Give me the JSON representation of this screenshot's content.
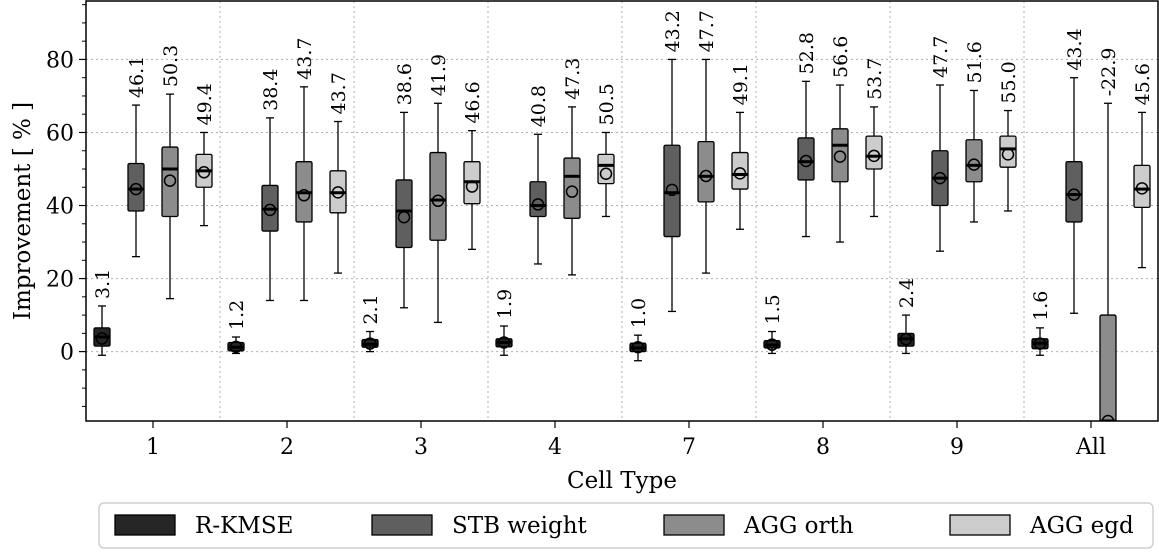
{
  "chart_data": {
    "type": "box",
    "xlabel": "Cell Type",
    "ylabel": "Improvement [ % ]",
    "categories": [
      "1",
      "2",
      "3",
      "4",
      "7",
      "8",
      "9",
      "All"
    ],
    "ylim": [
      -19,
      96
    ],
    "yticks": [
      0,
      20,
      40,
      60,
      80
    ],
    "ytick_labels": [
      "0",
      "20",
      "40",
      "60",
      "80"
    ],
    "grid": true,
    "legend_position": "bottom",
    "series": [
      {
        "name": "R-KMSE",
        "color": "#262626",
        "boxes": [
          {
            "category": "1",
            "whisker_low": -1,
            "q1": 1.5,
            "median": 4,
            "q3": 6.5,
            "whisker_high": 12.5,
            "mean": 3.6,
            "label": "3.1"
          },
          {
            "category": "2",
            "whisker_low": -0.5,
            "q1": 0.2,
            "median": 1.2,
            "q3": 2.5,
            "whisker_high": 4,
            "mean": 1.3,
            "label": "1.2"
          },
          {
            "category": "3",
            "whisker_low": 0,
            "q1": 1.2,
            "median": 2,
            "q3": 3.3,
            "whisker_high": 5.5,
            "mean": 2.2,
            "label": "2.1"
          },
          {
            "category": "4",
            "whisker_low": -1,
            "q1": 1.3,
            "median": 2.5,
            "q3": 3.5,
            "whisker_high": 7,
            "mean": 2.5,
            "label": "1.9"
          },
          {
            "category": "7",
            "whisker_low": -2.5,
            "q1": 0,
            "median": 1,
            "q3": 2.3,
            "whisker_high": 4.5,
            "mean": 1.2,
            "label": "1.0"
          },
          {
            "category": "8",
            "whisker_low": -0.5,
            "q1": 1,
            "median": 1.8,
            "q3": 3,
            "whisker_high": 5.5,
            "mean": 1.9,
            "label": "1.5"
          },
          {
            "category": "9",
            "whisker_low": -0.5,
            "q1": 1.5,
            "median": 3.5,
            "q3": 5,
            "whisker_high": 10,
            "mean": 3.4,
            "label": "2.4"
          },
          {
            "category": "All",
            "whisker_low": -1,
            "q1": 0.8,
            "median": 2.3,
            "q3": 3.5,
            "whisker_high": 6.5,
            "mean": 2.2,
            "label": "1.6"
          }
        ]
      },
      {
        "name": "STB weight",
        "color": "#5f5f5f",
        "boxes": [
          {
            "category": "1",
            "whisker_low": 26,
            "q1": 38.5,
            "median": 44.5,
            "q3": 51.5,
            "whisker_high": 67.5,
            "mean": 44.5,
            "label": "46.1"
          },
          {
            "category": "2",
            "whisker_low": 14,
            "q1": 33,
            "median": 39,
            "q3": 45.5,
            "whisker_high": 64,
            "mean": 38.8,
            "label": "38.4"
          },
          {
            "category": "3",
            "whisker_low": 12,
            "q1": 28.5,
            "median": 38.5,
            "q3": 47,
            "whisker_high": 65.5,
            "mean": 36.8,
            "label": "38.6"
          },
          {
            "category": "4",
            "whisker_low": 24,
            "q1": 37,
            "median": 40,
            "q3": 46.5,
            "whisker_high": 59.5,
            "mean": 40.3,
            "label": "40.8"
          },
          {
            "category": "7",
            "whisker_low": 11,
            "q1": 31.5,
            "median": 43.5,
            "q3": 56.5,
            "whisker_high": 80,
            "mean": 44.3,
            "label": "43.2"
          },
          {
            "category": "8",
            "whisker_low": 31.5,
            "q1": 47,
            "median": 52,
            "q3": 58.5,
            "whisker_high": 74,
            "mean": 52.2,
            "label": "52.8"
          },
          {
            "category": "9",
            "whisker_low": 27.5,
            "q1": 40,
            "median": 47.5,
            "q3": 55,
            "whisker_high": 73,
            "mean": 47.5,
            "label": "47.7"
          },
          {
            "category": "All",
            "whisker_low": 10.5,
            "q1": 35.5,
            "median": 43,
            "q3": 52,
            "whisker_high": 75,
            "mean": 43,
            "label": "43.4"
          }
        ]
      },
      {
        "name": "AGG orth",
        "color": "#8c8c8c",
        "boxes": [
          {
            "category": "1",
            "whisker_low": 14.5,
            "q1": 37,
            "median": 50,
            "q3": 56,
            "whisker_high": 70.5,
            "mean": 46.8,
            "label": "50.3"
          },
          {
            "category": "2",
            "whisker_low": 14,
            "q1": 35.5,
            "median": 43.5,
            "q3": 52,
            "whisker_high": 72.5,
            "mean": 42.8,
            "label": "43.7"
          },
          {
            "category": "3",
            "whisker_low": 8,
            "q1": 30.5,
            "median": 41.5,
            "q3": 54.5,
            "whisker_high": 68,
            "mean": 41.3,
            "label": "41.9"
          },
          {
            "category": "4",
            "whisker_low": 21,
            "q1": 36.5,
            "median": 48,
            "q3": 53,
            "whisker_high": 67,
            "mean": 43.8,
            "label": "47.3"
          },
          {
            "category": "7",
            "whisker_low": 21.5,
            "q1": 41,
            "median": 48,
            "q3": 57.5,
            "whisker_high": 80,
            "mean": 48.1,
            "label": "47.7"
          },
          {
            "category": "8",
            "whisker_low": 30,
            "q1": 46.5,
            "median": 56.5,
            "q3": 61,
            "whisker_high": 73,
            "mean": 53.4,
            "label": "56.6"
          },
          {
            "category": "9",
            "whisker_low": 35.5,
            "q1": 46.5,
            "median": 51,
            "q3": 58,
            "whisker_high": 71.5,
            "mean": 51.2,
            "label": "51.6"
          },
          {
            "category": "All",
            "whisker_low": -19,
            "q1": -19,
            "median": -19,
            "q3": 10,
            "whisker_high": 68,
            "mean": -19,
            "label": "-22.9"
          }
        ]
      },
      {
        "name": "AGG egd",
        "color": "#cccccc",
        "boxes": [
          {
            "category": "1",
            "whisker_low": 34.5,
            "q1": 45,
            "median": 49.5,
            "q3": 54,
            "whisker_high": 60,
            "mean": 49.1,
            "label": "49.4"
          },
          {
            "category": "2",
            "whisker_low": 21.5,
            "q1": 38,
            "median": 43.5,
            "q3": 49.5,
            "whisker_high": 63,
            "mean": 43.6,
            "label": "43.7"
          },
          {
            "category": "3",
            "whisker_low": 28,
            "q1": 40.5,
            "median": 46.5,
            "q3": 52,
            "whisker_high": 60.5,
            "mean": 45.2,
            "label": "46.6"
          },
          {
            "category": "4",
            "whisker_low": 37,
            "q1": 46,
            "median": 51,
            "q3": 54,
            "whisker_high": 60,
            "mean": 48.7,
            "label": "50.5"
          },
          {
            "category": "7",
            "whisker_low": 33.5,
            "q1": 44.5,
            "median": 48.5,
            "q3": 54.5,
            "whisker_high": 65.5,
            "mean": 48.8,
            "label": "49.1"
          },
          {
            "category": "8",
            "whisker_low": 37,
            "q1": 50,
            "median": 53.5,
            "q3": 59,
            "whisker_high": 67,
            "mean": 53.6,
            "label": "53.7"
          },
          {
            "category": "9",
            "whisker_low": 38.5,
            "q1": 50.5,
            "median": 55.5,
            "q3": 59,
            "whisker_high": 66,
            "mean": 54,
            "label": "55.0"
          },
          {
            "category": "All",
            "whisker_low": 23,
            "q1": 39.5,
            "median": 44.5,
            "q3": 51,
            "whisker_high": 65.5,
            "mean": 44.7,
            "label": "45.6"
          }
        ]
      }
    ]
  }
}
